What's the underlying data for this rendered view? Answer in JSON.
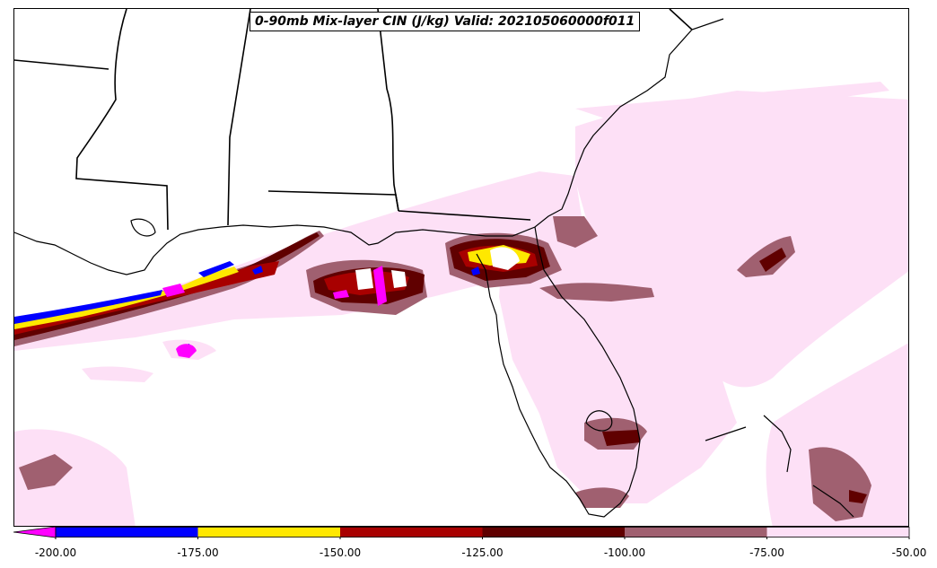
{
  "title": "0-90mb Mix-layer CIN (J/kg) Valid: 202105060000f011",
  "colorbar": {
    "ticks": [
      "-200.00",
      "-175.00",
      "-150.00",
      "-125.00",
      "-100.00",
      "-75.00",
      "-50.00"
    ],
    "colors": [
      "#0000ff",
      "#ffe800",
      "#a80000",
      "#600000",
      "#a06070",
      "#fde0f6"
    ],
    "extend_color": "#ff00ff"
  },
  "shading_colors": {
    "light": "#fde0f6",
    "mauve": "#a06070",
    "dark_red": "#600000",
    "red": "#a80000",
    "yellow": "#ffe800",
    "blue": "#0000ff",
    "magenta": "#ff00ff"
  }
}
